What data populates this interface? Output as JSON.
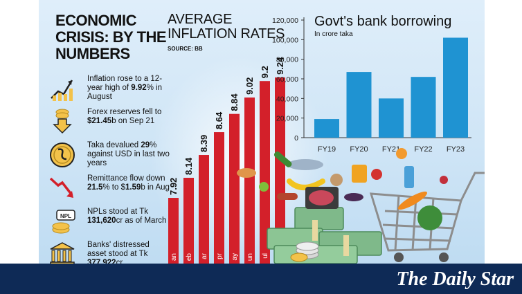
{
  "headline": [
    "ECONOMIC",
    "CRISIS: BY THE",
    "NUMBERS"
  ],
  "facts": [
    {
      "icon": "growth-chart-icon",
      "parts": [
        {
          "t": "Inflation rose to a 12-year high of "
        },
        {
          "t": "9.92",
          "b": true
        },
        {
          "t": "% in August"
        }
      ]
    },
    {
      "icon": "down-arrow-coins-icon",
      "parts": [
        {
          "t": "Forex reserves fell to "
        },
        {
          "t": "$21.45",
          "b": true
        },
        {
          "t": "b on Sep 21"
        }
      ]
    },
    {
      "icon": "taka-coin-icon",
      "parts": [
        {
          "t": "Taka devalued "
        },
        {
          "t": "29",
          "b": true
        },
        {
          "t": "% against USD in last two years"
        }
      ]
    },
    {
      "icon": "falling-arrow-icon",
      "parts": [
        {
          "t": "Remittance flow down "
        },
        {
          "t": "21.5",
          "b": true
        },
        {
          "t": "% to $"
        },
        {
          "t": "1.59",
          "b": true
        },
        {
          "t": "b in Aug"
        }
      ]
    },
    {
      "icon": "npl-coins-icon",
      "icon_text": "NPL",
      "parts": [
        {
          "t": "NPLs stood at Tk "
        },
        {
          "t": "131,620",
          "b": true
        },
        {
          "t": "cr as of March"
        }
      ]
    },
    {
      "icon": "bank-icon",
      "parts": [
        {
          "t": "Banks' distressed asset stood at Tk "
        },
        {
          "t": "377,922",
          "b": true
        },
        {
          "t": "cr"
        }
      ]
    }
  ],
  "inflation": {
    "title_lines": [
      "AVERAGE",
      "INFLATION RATES"
    ],
    "source": "SOURCE: BB"
  },
  "borrowing": {
    "title": "Govt's bank borrowing",
    "subtitle": "In crore taka"
  },
  "chart_data": [
    {
      "type": "bar",
      "title": "AVERAGE INFLATION RATES",
      "categories": [
        "Jan",
        "Feb",
        "Mar",
        "Apr",
        "May",
        "Jun",
        "Jul",
        "Aug"
      ],
      "visible_category_labels": [
        "an",
        "eb",
        "ar",
        "pr",
        "ay",
        "un",
        "ul",
        "ug"
      ],
      "values": [
        7.92,
        8.14,
        8.39,
        8.64,
        8.84,
        9.02,
        9.2,
        9.24
      ],
      "value_labels": [
        "7.92",
        "8.14",
        "8.39",
        "8.64",
        "8.84",
        "9.02",
        "9.2",
        "9.24"
      ],
      "ylim": [
        7.2,
        9.3
      ],
      "bar_color": "#d3202a",
      "grid": false
    },
    {
      "type": "bar",
      "title": "Govt's bank borrowing",
      "ylabel": "In crore taka",
      "categories": [
        "FY19",
        "FY20",
        "FY21",
        "FY22",
        "FY23"
      ],
      "values": [
        19000,
        67000,
        40000,
        62000,
        102000
      ],
      "yticks": [
        0,
        20000,
        40000,
        60000,
        80000,
        100000,
        120000
      ],
      "ytick_labels": [
        "0",
        "20,000",
        "40,000",
        "60,000",
        "80,000",
        "100,000",
        "120,000"
      ],
      "ylim": [
        0,
        120000
      ],
      "bar_color": "#1f93d2",
      "grid": false
    }
  ],
  "brand": "The Daily Star",
  "colors": {
    "footer": "#0e2a56",
    "infl_bar": "#d3202a",
    "borrow_bar": "#1f93d2"
  }
}
